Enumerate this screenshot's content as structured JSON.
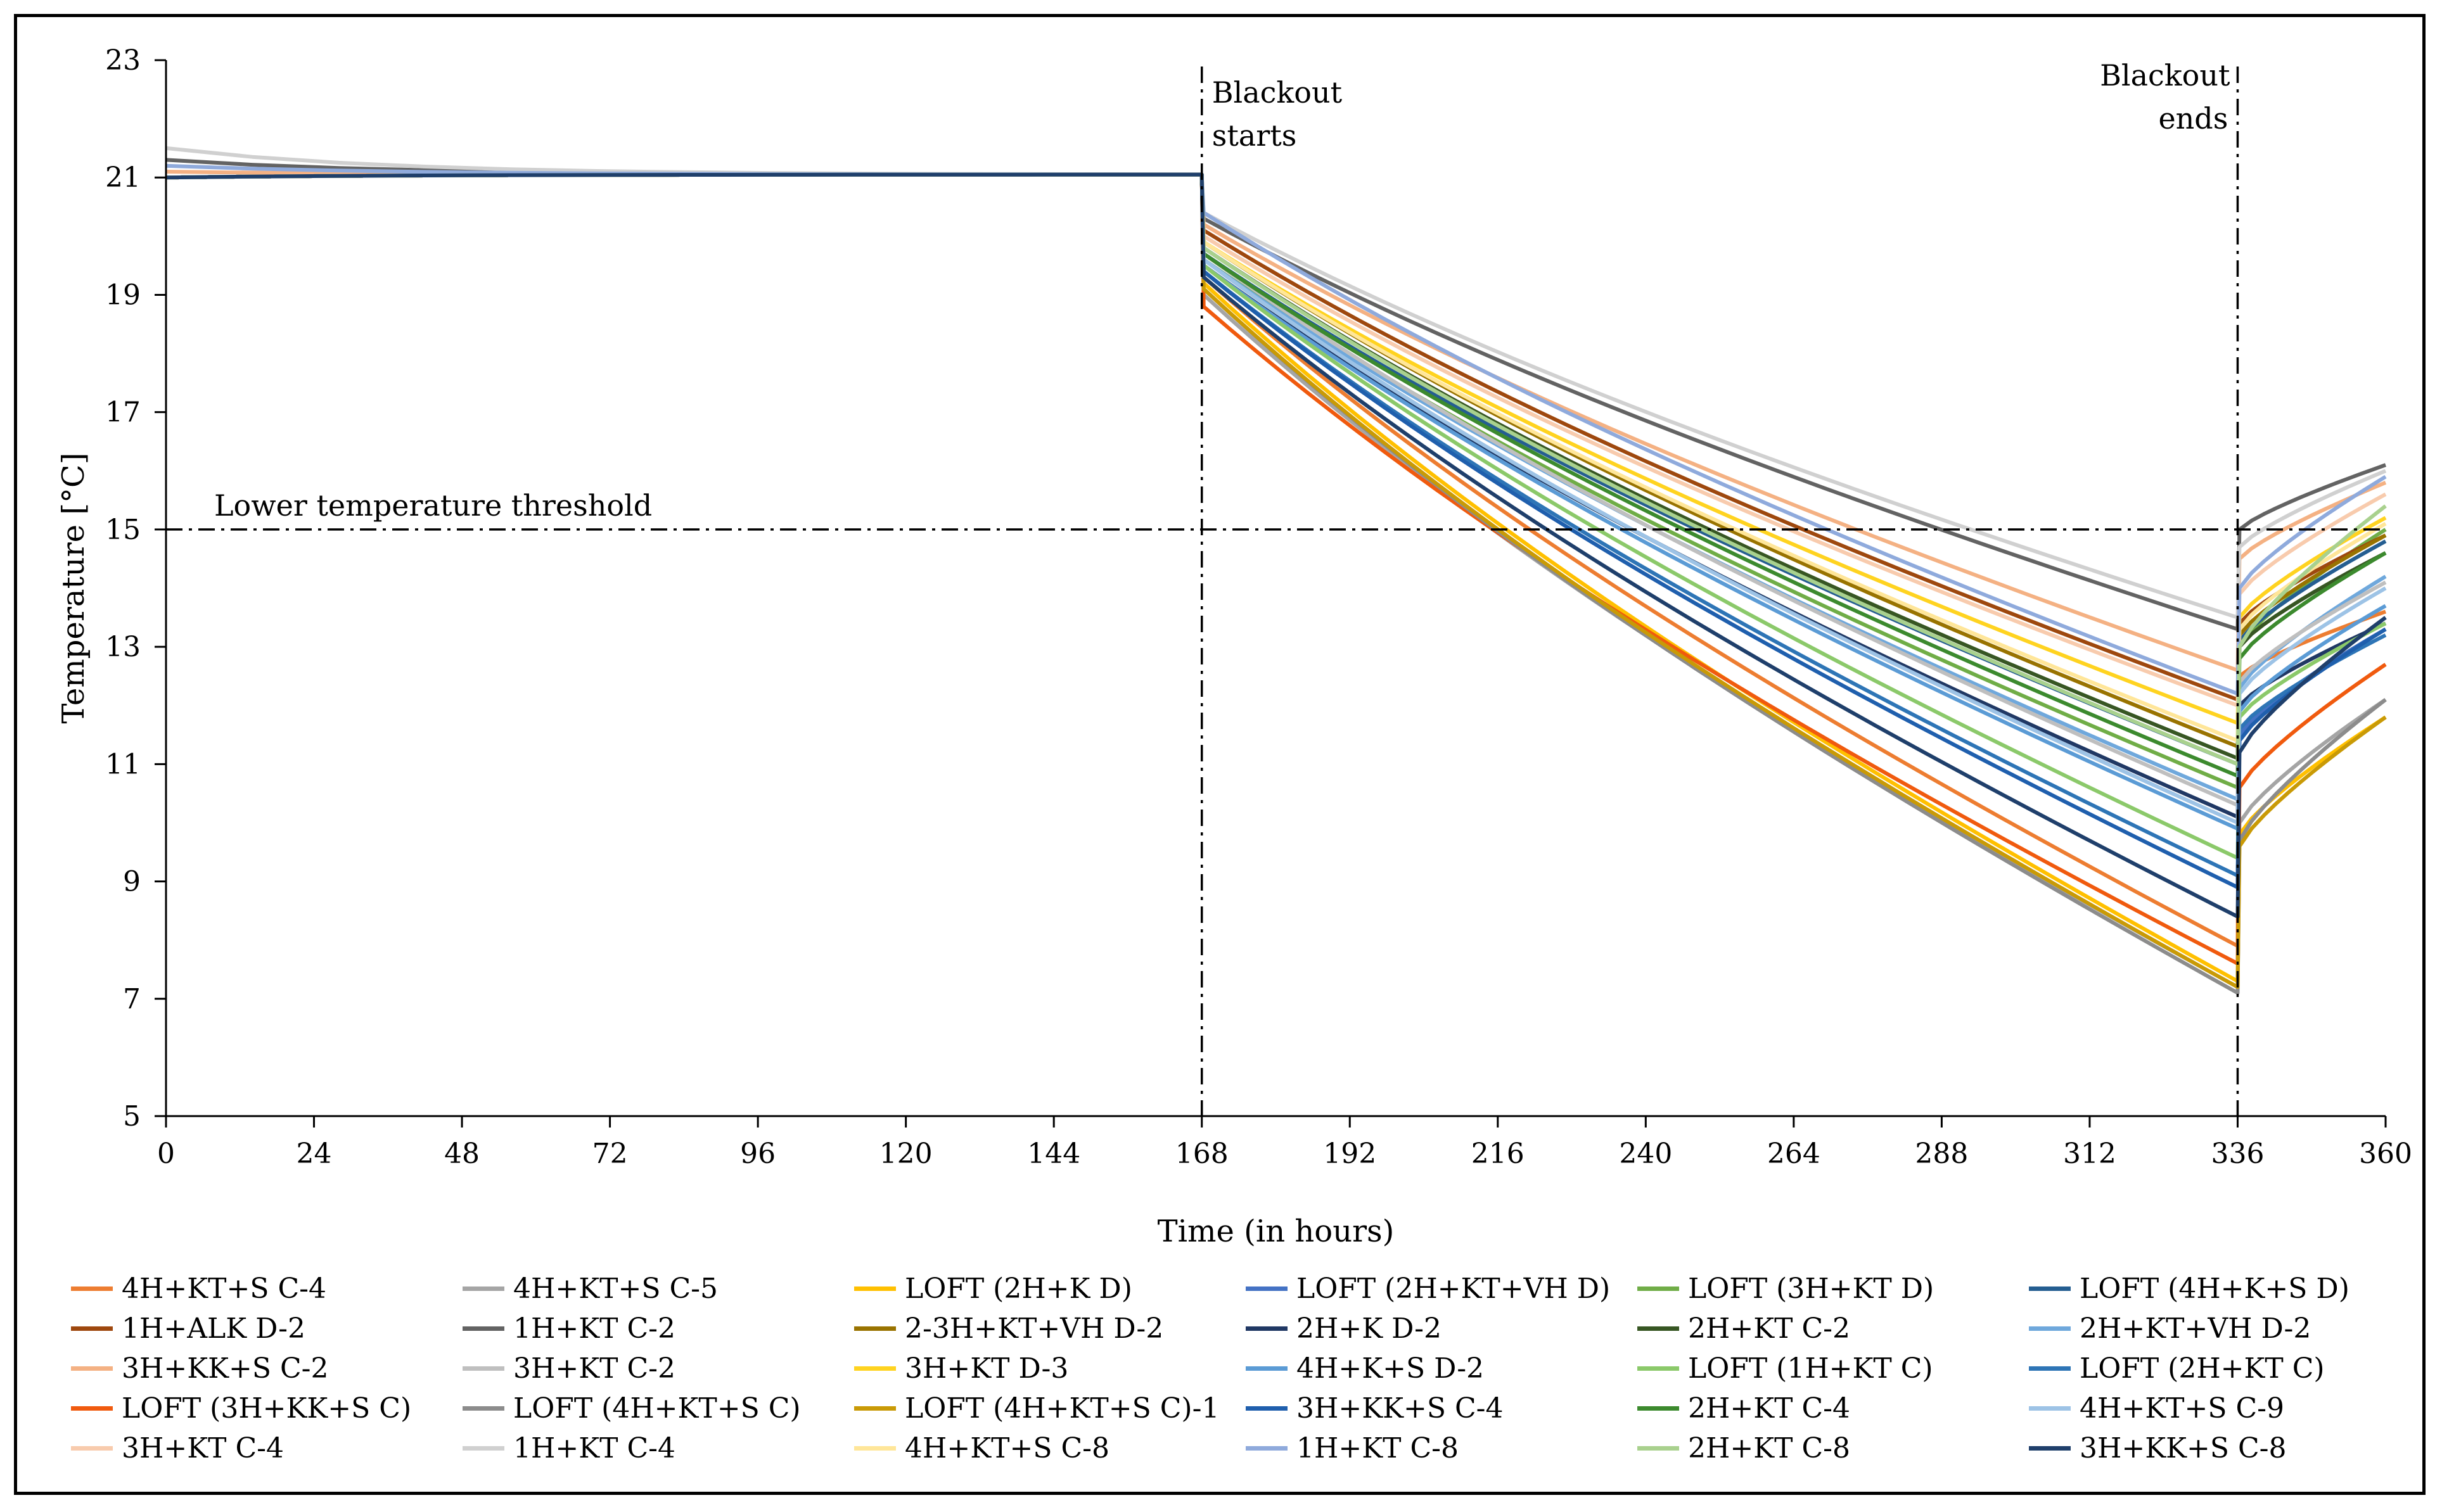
{
  "chart_data": {
    "type": "line",
    "title": "",
    "xlabel": "Time (in hours)",
    "ylabel": "Temperature [°C]",
    "xlim": [
      0,
      360
    ],
    "ylim": [
      5,
      23
    ],
    "xticks": [
      0,
      24,
      48,
      72,
      96,
      120,
      144,
      168,
      192,
      216,
      240,
      264,
      288,
      312,
      336,
      360
    ],
    "yticks": [
      5,
      7,
      9,
      11,
      13,
      15,
      17,
      19,
      21,
      23
    ],
    "threshold": {
      "value": 15,
      "label": "Lower temperature threshold"
    },
    "events": [
      {
        "x": 168,
        "label_line1": "Blackout",
        "label_line2": "starts"
      },
      {
        "x": 336,
        "label_line1": "Blackout",
        "label_line2": "ends"
      }
    ],
    "series": [
      {
        "name": "4H+KT+S C-4",
        "color": "#ED7D31",
        "start": 21.0,
        "drop": 19.3,
        "end": 7.9,
        "recover": 12.5,
        "final": 13.6
      },
      {
        "name": "4H+KT+S C-5",
        "color": "#A5A5A5",
        "start": 21.0,
        "drop": 19.0,
        "end": 7.2,
        "recover": 10.0,
        "final": 12.1
      },
      {
        "name": "LOFT (2H+K D)",
        "color": "#FFC000",
        "start": 21.0,
        "drop": 19.2,
        "end": 7.3,
        "recover": 9.8,
        "final": 11.8
      },
      {
        "name": "LOFT (2H+KT+VH D)",
        "color": "#4472C4",
        "start": 21.0,
        "drop": 19.4,
        "end": 8.9,
        "recover": 11.5,
        "final": 13.3
      },
      {
        "name": "LOFT (3H+KT D)",
        "color": "#70AD47",
        "start": 21.0,
        "drop": 19.6,
        "end": 10.6,
        "recover": 13.0,
        "final": 15.0
      },
      {
        "name": "LOFT (4H+K+S D)",
        "color": "#255E91",
        "start": 21.0,
        "drop": 19.7,
        "end": 11.0,
        "recover": 13.1,
        "final": 14.8
      },
      {
        "name": "1H+ALK D-2",
        "color": "#9E480E",
        "start": 21.0,
        "drop": 20.1,
        "end": 12.1,
        "recover": 13.4,
        "final": 14.9
      },
      {
        "name": "1H+KT C-2",
        "color": "#636363",
        "start": 21.3,
        "drop": 20.3,
        "end": 13.3,
        "recover": 15.0,
        "final": 16.1
      },
      {
        "name": "2-3H+KT+VH D-2",
        "color": "#997300",
        "start": 21.0,
        "drop": 19.9,
        "end": 11.3,
        "recover": 13.2,
        "final": 14.9
      },
      {
        "name": "2H+K D-2",
        "color": "#203864",
        "start": 21.0,
        "drop": 19.5,
        "end": 10.1,
        "recover": 12.0,
        "final": 13.4
      },
      {
        "name": "2H+KT C-2",
        "color": "#375623",
        "start": 21.0,
        "drop": 19.8,
        "end": 11.1,
        "recover": 13.0,
        "final": 14.6
      },
      {
        "name": "2H+KT+VH D-2",
        "color": "#6FA8DC",
        "start": 21.0,
        "drop": 19.6,
        "end": 10.4,
        "recover": 12.3,
        "final": 14.2
      },
      {
        "name": "3H+KK+S C-2",
        "color": "#F4B183",
        "start": 21.1,
        "drop": 20.2,
        "end": 12.6,
        "recover": 14.5,
        "final": 15.8
      },
      {
        "name": "3H+KT C-2",
        "color": "#BFBFBF",
        "start": 21.0,
        "drop": 19.7,
        "end": 10.3,
        "recover": 12.4,
        "final": 14.1
      },
      {
        "name": "3H+KT D-3",
        "color": "#FFD320",
        "start": 21.0,
        "drop": 19.9,
        "end": 11.7,
        "recover": 13.5,
        "final": 15.2
      },
      {
        "name": "4H+K+S D-2",
        "color": "#5B9BD5",
        "start": 21.0,
        "drop": 19.5,
        "end": 9.9,
        "recover": 11.9,
        "final": 13.7
      },
      {
        "name": "LOFT (1H+KT C)",
        "color": "#8BC96A",
        "start": 21.0,
        "drop": 19.5,
        "end": 9.4,
        "recover": 11.8,
        "final": 13.4
      },
      {
        "name": "LOFT (2H+KT C)",
        "color": "#2E75B6",
        "start": 21.0,
        "drop": 19.4,
        "end": 9.1,
        "recover": 11.6,
        "final": 13.2
      },
      {
        "name": "LOFT (3H+KK+S C)",
        "color": "#F05A0E",
        "start": 21.0,
        "drop": 18.8,
        "end": 7.6,
        "recover": 10.6,
        "final": 12.7
      },
      {
        "name": "LOFT (4H+KT+S C)",
        "color": "#8C8C8C",
        "start": 21.0,
        "drop": 19.1,
        "end": 7.1,
        "recover": 9.7,
        "final": 12.1
      },
      {
        "name": "LOFT (4H+KT+S C)-1",
        "color": "#C99A06",
        "start": 21.0,
        "drop": 19.1,
        "end": 7.2,
        "recover": 9.6,
        "final": 11.8
      },
      {
        "name": "3H+KK+S C-4",
        "color": "#1F5FAD",
        "start": 21.0,
        "drop": 19.4,
        "end": 8.9,
        "recover": 11.4,
        "final": 13.3
      },
      {
        "name": "2H+KT C-4",
        "color": "#3C8A2E",
        "start": 21.0,
        "drop": 19.7,
        "end": 10.8,
        "recover": 12.8,
        "final": 14.6
      },
      {
        "name": "4H+KT+S C-9",
        "color": "#9DC3E6",
        "start": 21.0,
        "drop": 19.6,
        "end": 10.0,
        "recover": 12.2,
        "final": 14.0
      },
      {
        "name": "3H+KT C-4",
        "color": "#F8CBAD",
        "start": 21.0,
        "drop": 20.0,
        "end": 12.0,
        "recover": 13.9,
        "final": 15.6
      },
      {
        "name": "1H+KT C-4",
        "color": "#D0D0D0",
        "start": 21.5,
        "drop": 20.4,
        "end": 13.5,
        "recover": 14.7,
        "final": 16.0
      },
      {
        "name": "4H+KT+S C-8",
        "color": "#FFE699",
        "start": 21.0,
        "drop": 19.9,
        "end": 11.4,
        "recover": 13.3,
        "final": 15.1
      },
      {
        "name": "1H+KT C-8",
        "color": "#8FAADC",
        "start": 21.2,
        "drop": 20.4,
        "end": 12.2,
        "recover": 14.0,
        "final": 15.9
      },
      {
        "name": "2H+KT C-8",
        "color": "#A9D18E",
        "start": 21.0,
        "drop": 19.8,
        "end": 11.0,
        "recover": 13.0,
        "final": 15.4
      },
      {
        "name": "3H+KK+S C-8",
        "color": "#1F3F6B",
        "start": 21.0,
        "drop": 19.3,
        "end": 8.4,
        "recover": 11.2,
        "final": 13.5
      }
    ]
  }
}
